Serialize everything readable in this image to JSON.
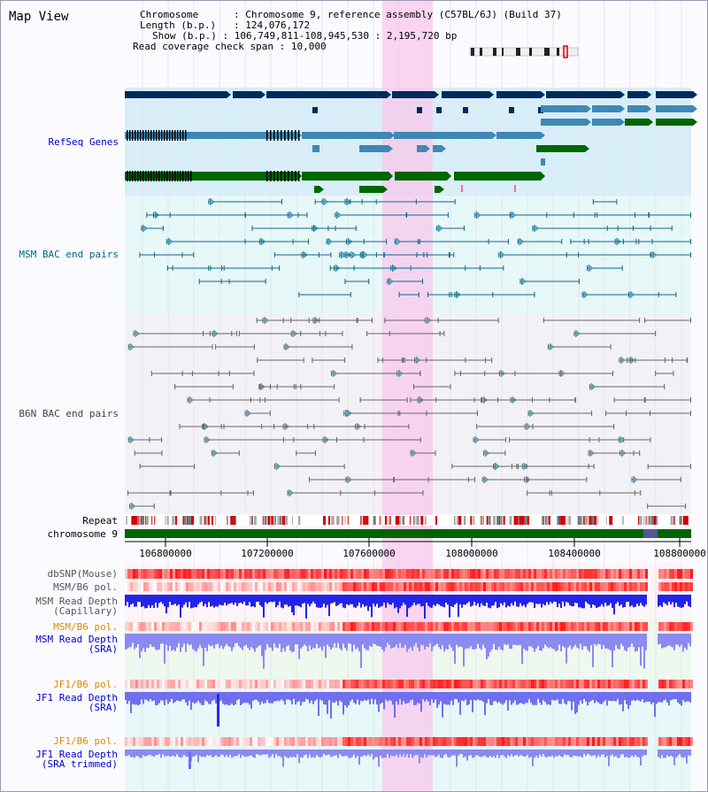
{
  "view_title": "Map View",
  "info": {
    "chromosome_label": "Chromosome",
    "chromosome_value": "Chromosome 9, reference assembly (C57BL/6J) (Build 37)",
    "length_label": "Length (b.p.)",
    "length_value": "124,076,172",
    "show_label": "Show (b.p.)",
    "show_value": "106,749,811-108,945,530 : 2,195,720 bp",
    "coverage_label": "Read coverage check span",
    "coverage_value": "10,000"
  },
  "tracks": {
    "refseq": "RefSeq Genes",
    "msm_bac": "MSM BAC end pairs",
    "b6n_bac": "B6N BAC end pairs",
    "repeat": "Repeat",
    "chromosome": "chromosome 9",
    "dbsnp": "dbSNP(Mouse)",
    "msm_b6_pol_1": "MSM/B6 pol.",
    "msm_depth_cap_1": "MSM Read Depth",
    "msm_depth_cap_2": "(Capillary)",
    "msm_b6_pol_2": "MSM/B6 pol.",
    "msm_depth_sra_1": "MSM Read Depth",
    "msm_depth_sra_2": "(SRA)",
    "jf1_b6_pol_1": "JF1/B6 pol.",
    "jf1_depth_sra_1": "JF1 Read Depth",
    "jf1_depth_sra_2": "(SRA)",
    "jf1_b6_pol_2": "JF1/B6 pol.",
    "jf1_depth_trim_1": "JF1 Read Depth",
    "jf1_depth_trim_2": "(SRA trimmed)"
  },
  "axis_ticks": [
    "106800000",
    "107200000",
    "107600000",
    "108000000",
    "108400000",
    "108800000"
  ],
  "colors": {
    "refseq_label": "#0000cc",
    "msm_label": "#006688",
    "b6n_label": "#444444",
    "orange_label": "#e08a00",
    "blue_label": "#0000cc",
    "gene_dark": "#002b5e",
    "gene_mid": "#3e88b4",
    "gene_green": "#006600",
    "highlight": "#f8c8ec",
    "chromosome_bar": "#006400"
  }
}
